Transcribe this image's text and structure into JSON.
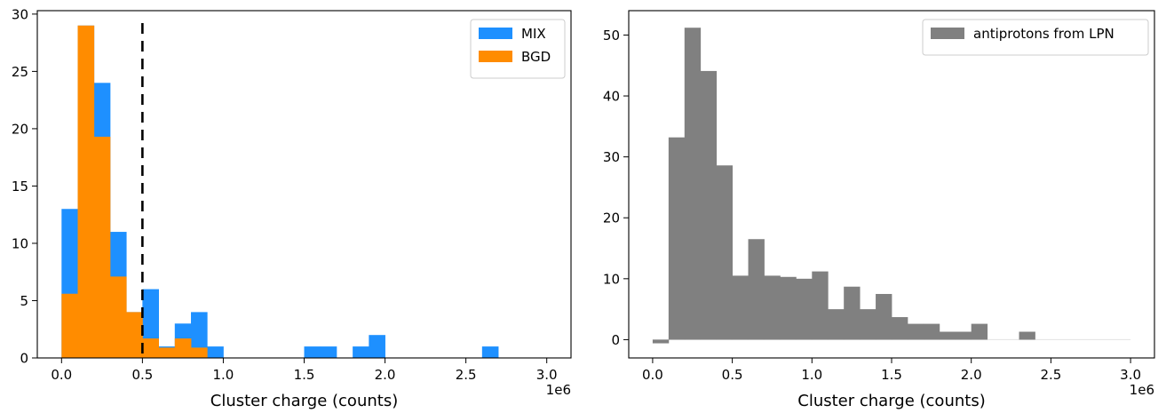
{
  "chart_data": [
    {
      "type": "bar",
      "subtype": "histogram",
      "xlabel": "Cluster charge (counts)",
      "ylabel": "",
      "x_multiplier_label": "1e6",
      "xlim": [
        -0.15,
        3.15
      ],
      "ylim": [
        0,
        30.3
      ],
      "xticks": [
        {
          "value": 0.0,
          "label": "0.0"
        },
        {
          "value": 0.5,
          "label": "0.5"
        },
        {
          "value": 1.0,
          "label": "1.0"
        },
        {
          "value": 1.5,
          "label": "1.5"
        },
        {
          "value": 2.0,
          "label": "2.0"
        },
        {
          "value": 2.5,
          "label": "2.5"
        },
        {
          "value": 3.0,
          "label": "3.0"
        }
      ],
      "yticks": [
        {
          "value": 0,
          "label": "0"
        },
        {
          "value": 5,
          "label": "5"
        },
        {
          "value": 10,
          "label": "10"
        },
        {
          "value": 15,
          "label": "15"
        },
        {
          "value": 20,
          "label": "20"
        },
        {
          "value": 25,
          "label": "25"
        },
        {
          "value": 30,
          "label": "30"
        }
      ],
      "bin_edges": [
        0.0,
        0.1,
        0.2,
        0.3,
        0.4,
        0.5,
        0.6,
        0.7,
        0.8,
        0.9,
        1.0,
        1.1,
        1.2,
        1.3,
        1.4,
        1.5,
        1.6,
        1.7,
        1.8,
        1.9,
        2.0,
        2.1,
        2.2,
        2.3,
        2.4,
        2.5,
        2.6,
        2.7,
        2.8,
        2.9,
        3.0
      ],
      "series": [
        {
          "name": "MIX",
          "color": "#1e90ff",
          "values": [
            13,
            29,
            24,
            11,
            4,
            6,
            1,
            3,
            4,
            1,
            0,
            0,
            0,
            0,
            0,
            1,
            1,
            0,
            1,
            2,
            0,
            0,
            0,
            0,
            0,
            0,
            1,
            0,
            0,
            0
          ]
        },
        {
          "name": "BGD",
          "color": "#ff8c00",
          "values": [
            5.6,
            29,
            19.3,
            7.1,
            4,
            1.7,
            0.9,
            1.7,
            0.9,
            0,
            0,
            0,
            0,
            0,
            0,
            0,
            0,
            0,
            0,
            0,
            0,
            0,
            0,
            0,
            0,
            0,
            0,
            0,
            0,
            0
          ]
        }
      ],
      "vline": {
        "x": 0.5,
        "style": "dashed",
        "color": "#000000"
      },
      "legend": {
        "placement": "upper-right",
        "entries": [
          "MIX",
          "BGD"
        ]
      }
    },
    {
      "type": "bar",
      "subtype": "histogram",
      "xlabel": "Cluster charge (counts)",
      "ylabel": "",
      "x_multiplier_label": "1e6",
      "xlim": [
        -0.15,
        3.15
      ],
      "ylim": [
        -3,
        54
      ],
      "xticks": [
        {
          "value": 0.0,
          "label": "0.0"
        },
        {
          "value": 0.5,
          "label": "0.5"
        },
        {
          "value": 1.0,
          "label": "1.0"
        },
        {
          "value": 1.5,
          "label": "1.5"
        },
        {
          "value": 2.0,
          "label": "2.0"
        },
        {
          "value": 2.5,
          "label": "2.5"
        },
        {
          "value": 3.0,
          "label": "3.0"
        }
      ],
      "yticks": [
        {
          "value": 0,
          "label": "0"
        },
        {
          "value": 10,
          "label": "10"
        },
        {
          "value": 20,
          "label": "20"
        },
        {
          "value": 30,
          "label": "30"
        },
        {
          "value": 40,
          "label": "40"
        },
        {
          "value": 50,
          "label": "50"
        }
      ],
      "bin_edges": [
        0.0,
        0.1,
        0.2,
        0.3,
        0.4,
        0.5,
        0.6,
        0.7,
        0.8,
        0.9,
        1.0,
        1.1,
        1.2,
        1.3,
        1.4,
        1.5,
        1.6,
        1.7,
        1.8,
        1.9,
        2.0,
        2.1,
        2.2,
        2.3,
        2.4,
        2.5,
        2.6,
        2.7,
        2.8,
        2.9,
        3.0
      ],
      "series": [
        {
          "name": "antiprotons from LPN",
          "color": "#808080",
          "values": [
            -0.6,
            33.2,
            51.2,
            44.1,
            28.6,
            10.5,
            16.5,
            10.5,
            10.3,
            10.0,
            11.2,
            5.0,
            8.7,
            5.0,
            7.5,
            3.7,
            2.6,
            2.6,
            1.3,
            1.3,
            2.6,
            0,
            0,
            1.3,
            0,
            0,
            0,
            0,
            0,
            0
          ]
        }
      ],
      "baseline": {
        "y": 0,
        "color": "#e6e6e6"
      },
      "legend": {
        "placement": "upper-right",
        "entries": [
          "antiprotons from LPN"
        ]
      }
    }
  ]
}
